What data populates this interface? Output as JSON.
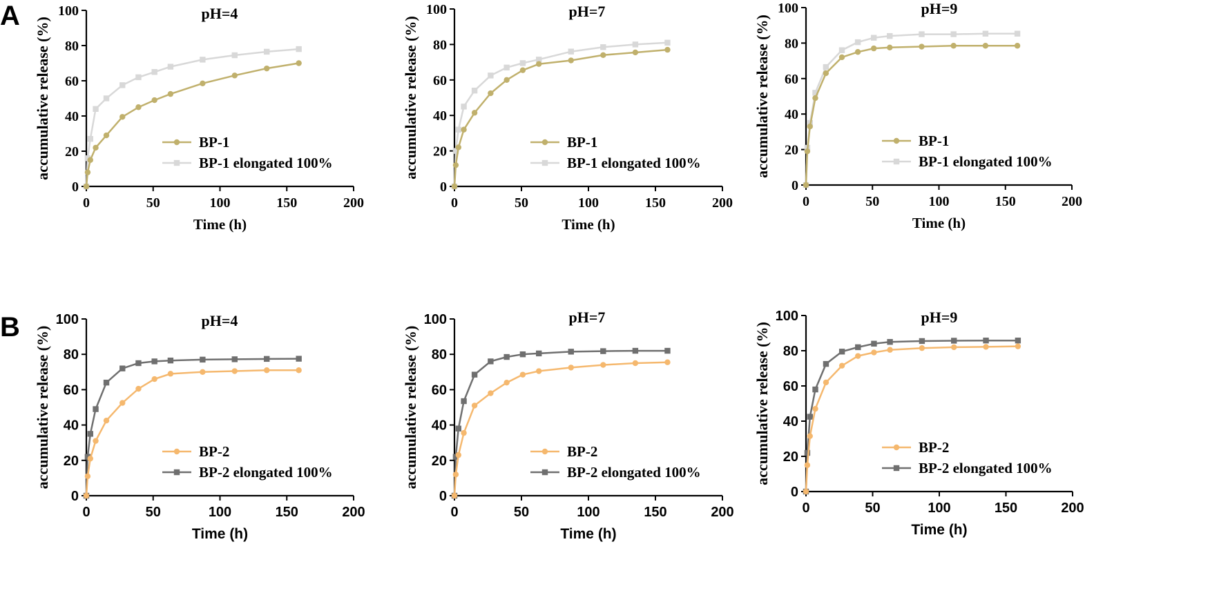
{
  "panel_labels": [
    "A",
    "B"
  ],
  "chart_data": [
    {
      "type": "line",
      "panel": "A",
      "title": "pH=4",
      "xlabel": "Time (h)",
      "ylabel": "accumulative release (%)",
      "xlim": [
        0,
        200
      ],
      "ylim": [
        0,
        100
      ],
      "xticks": [
        0,
        50,
        100,
        150,
        200
      ],
      "yticks": [
        0,
        20,
        40,
        60,
        80,
        100
      ],
      "x": [
        0,
        1,
        3,
        7,
        15,
        27,
        39,
        51,
        63,
        87,
        111,
        135,
        159
      ],
      "series": [
        {
          "name": "BP-1",
          "color": "#c0b06c",
          "marker": "circle",
          "values": [
            0,
            8,
            15,
            22,
            29,
            39.5,
            45,
            49,
            52.5,
            58.5,
            63,
            67,
            70
          ]
        },
        {
          "name": "BP-1 elongated 100%",
          "color": "#d8d8d8",
          "marker": "square",
          "values": [
            0,
            16,
            27,
            44,
            50,
            57.5,
            62,
            65,
            68,
            72,
            74.5,
            76.5,
            78
          ]
        }
      ]
    },
    {
      "type": "line",
      "panel": "A",
      "title": "pH=7",
      "xlabel": "Time (h)",
      "ylabel": "accumulative release (%)",
      "xlim": [
        0,
        200
      ],
      "ylim": [
        0,
        100
      ],
      "xticks": [
        0,
        50,
        100,
        150,
        200
      ],
      "yticks": [
        0,
        20,
        40,
        60,
        80,
        100
      ],
      "x": [
        0,
        1,
        3,
        7,
        15,
        27,
        39,
        51,
        63,
        87,
        111,
        135,
        159
      ],
      "series": [
        {
          "name": "BP-1",
          "color": "#c0b06c",
          "marker": "circle",
          "values": [
            0,
            12,
            22,
            32,
            41.5,
            52.5,
            60,
            65.5,
            69,
            71,
            74,
            75.5,
            77
          ]
        },
        {
          "name": "BP-1 elongated 100%",
          "color": "#d8d8d8",
          "marker": "square",
          "values": [
            0,
            20,
            32,
            45,
            54,
            62.5,
            67,
            69.5,
            71.5,
            76,
            78.5,
            80,
            81
          ]
        }
      ]
    },
    {
      "type": "line",
      "panel": "A",
      "title": "pH=9",
      "xlabel": "Time (h)",
      "ylabel": "accumulative release (%)",
      "xlim": [
        0,
        200
      ],
      "ylim": [
        0,
        100
      ],
      "xticks": [
        0,
        50,
        100,
        150,
        200
      ],
      "yticks": [
        0,
        20,
        40,
        60,
        80,
        100
      ],
      "x": [
        0,
        1,
        3,
        7,
        15,
        27,
        39,
        51,
        63,
        87,
        111,
        135,
        159
      ],
      "series": [
        {
          "name": "BP-1",
          "color": "#c0b06c",
          "marker": "circle",
          "values": [
            0,
            19,
            33,
            49,
            63,
            72,
            75,
            77,
            77.5,
            78,
            78.5,
            78.5,
            78.5
          ]
        },
        {
          "name": "BP-1 elongated 100%",
          "color": "#d8d8d8",
          "marker": "square",
          "values": [
            0,
            21,
            35,
            52,
            66.5,
            76,
            80.5,
            83,
            84,
            85,
            85,
            85.3,
            85.3
          ]
        }
      ]
    },
    {
      "type": "line",
      "panel": "B",
      "title": "pH=4",
      "xlabel": "Time (h)",
      "ylabel": "accumulative release (%)",
      "xlim": [
        0,
        200
      ],
      "ylim": [
        0,
        100
      ],
      "xticks": [
        0,
        50,
        100,
        150,
        200
      ],
      "yticks": [
        0,
        20,
        40,
        60,
        80,
        100
      ],
      "x": [
        0,
        1,
        3,
        7,
        15,
        27,
        39,
        51,
        63,
        87,
        111,
        135,
        159
      ],
      "series": [
        {
          "name": "BP-2",
          "color": "#f5b86e",
          "marker": "circle",
          "values": [
            0,
            11,
            21,
            31,
            42.5,
            52.5,
            60.5,
            66,
            69,
            70,
            70.5,
            71,
            71
          ]
        },
        {
          "name": "BP-2 elongated 100%",
          "color": "#6f6f6f",
          "marker": "square",
          "values": [
            0,
            22,
            35,
            49,
            64,
            72,
            75,
            76,
            76.5,
            77,
            77.2,
            77.4,
            77.5
          ]
        }
      ]
    },
    {
      "type": "line",
      "panel": "B",
      "title": "pH=7",
      "xlabel": "Time (h)",
      "ylabel": "accumulative release (%)",
      "xlim": [
        0,
        200
      ],
      "ylim": [
        0,
        100
      ],
      "xticks": [
        0,
        50,
        100,
        150,
        200
      ],
      "yticks": [
        0,
        20,
        40,
        60,
        80,
        100
      ],
      "x": [
        0,
        1,
        3,
        7,
        15,
        27,
        39,
        51,
        63,
        87,
        111,
        135,
        159
      ],
      "series": [
        {
          "name": "BP-2",
          "color": "#f5b86e",
          "marker": "circle",
          "values": [
            0,
            12,
            23,
            35.5,
            51,
            58,
            64,
            68.5,
            70.5,
            72.5,
            74,
            75,
            75.5
          ]
        },
        {
          "name": "BP-2 elongated 100%",
          "color": "#6f6f6f",
          "marker": "square",
          "values": [
            0,
            22,
            38,
            53.5,
            68.5,
            76,
            78.5,
            80,
            80.5,
            81.5,
            81.8,
            82,
            82
          ]
        }
      ]
    },
    {
      "type": "line",
      "panel": "B",
      "title": "pH=9",
      "xlabel": "Time (h)",
      "ylabel": "accumulative release (%)",
      "xlim": [
        0,
        200
      ],
      "ylim": [
        0,
        100
      ],
      "xticks": [
        0,
        50,
        100,
        150,
        200
      ],
      "yticks": [
        0,
        20,
        40,
        60,
        80,
        100
      ],
      "x": [
        0,
        1,
        3,
        7,
        15,
        27,
        39,
        51,
        63,
        87,
        111,
        135,
        159
      ],
      "series": [
        {
          "name": "BP-2",
          "color": "#f5b86e",
          "marker": "circle",
          "values": [
            0,
            15,
            31.5,
            47,
            62,
            71.5,
            77,
            79,
            80.5,
            81.5,
            82,
            82.2,
            82.5
          ]
        },
        {
          "name": "BP-2 elongated 100%",
          "color": "#6f6f6f",
          "marker": "square",
          "values": [
            0,
            22,
            42.5,
            58,
            72.5,
            79.5,
            82,
            84,
            85,
            85.5,
            85.7,
            85.8,
            85.8
          ]
        }
      ]
    }
  ]
}
